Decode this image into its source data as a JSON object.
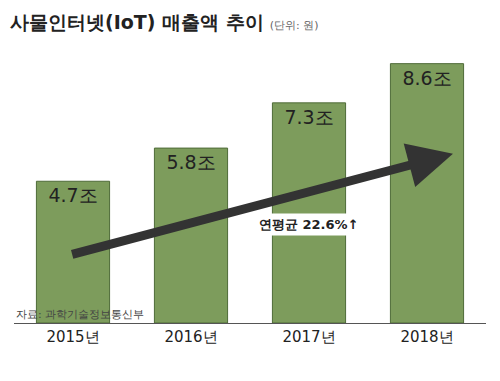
{
  "chart_data": {
    "type": "bar",
    "title": "사물인터넷(IoT) 매출액 추이",
    "subtitle": "(단위: 원)",
    "categories": [
      "2015년",
      "2016년",
      "2017년",
      "2018년"
    ],
    "values": [
      4.7,
      5.8,
      7.3,
      8.6
    ],
    "value_labels": [
      "4.7조",
      "5.8조",
      "7.3조",
      "8.6조"
    ],
    "data_labels": true,
    "color": "#7d9c5c",
    "tick_labels": "x",
    "grid": false,
    "annotations": [
      {
        "text": "연평균 22.6%↑",
        "x": "2017년"
      }
    ],
    "source": "자료: 과학기술정보통신부"
  }
}
